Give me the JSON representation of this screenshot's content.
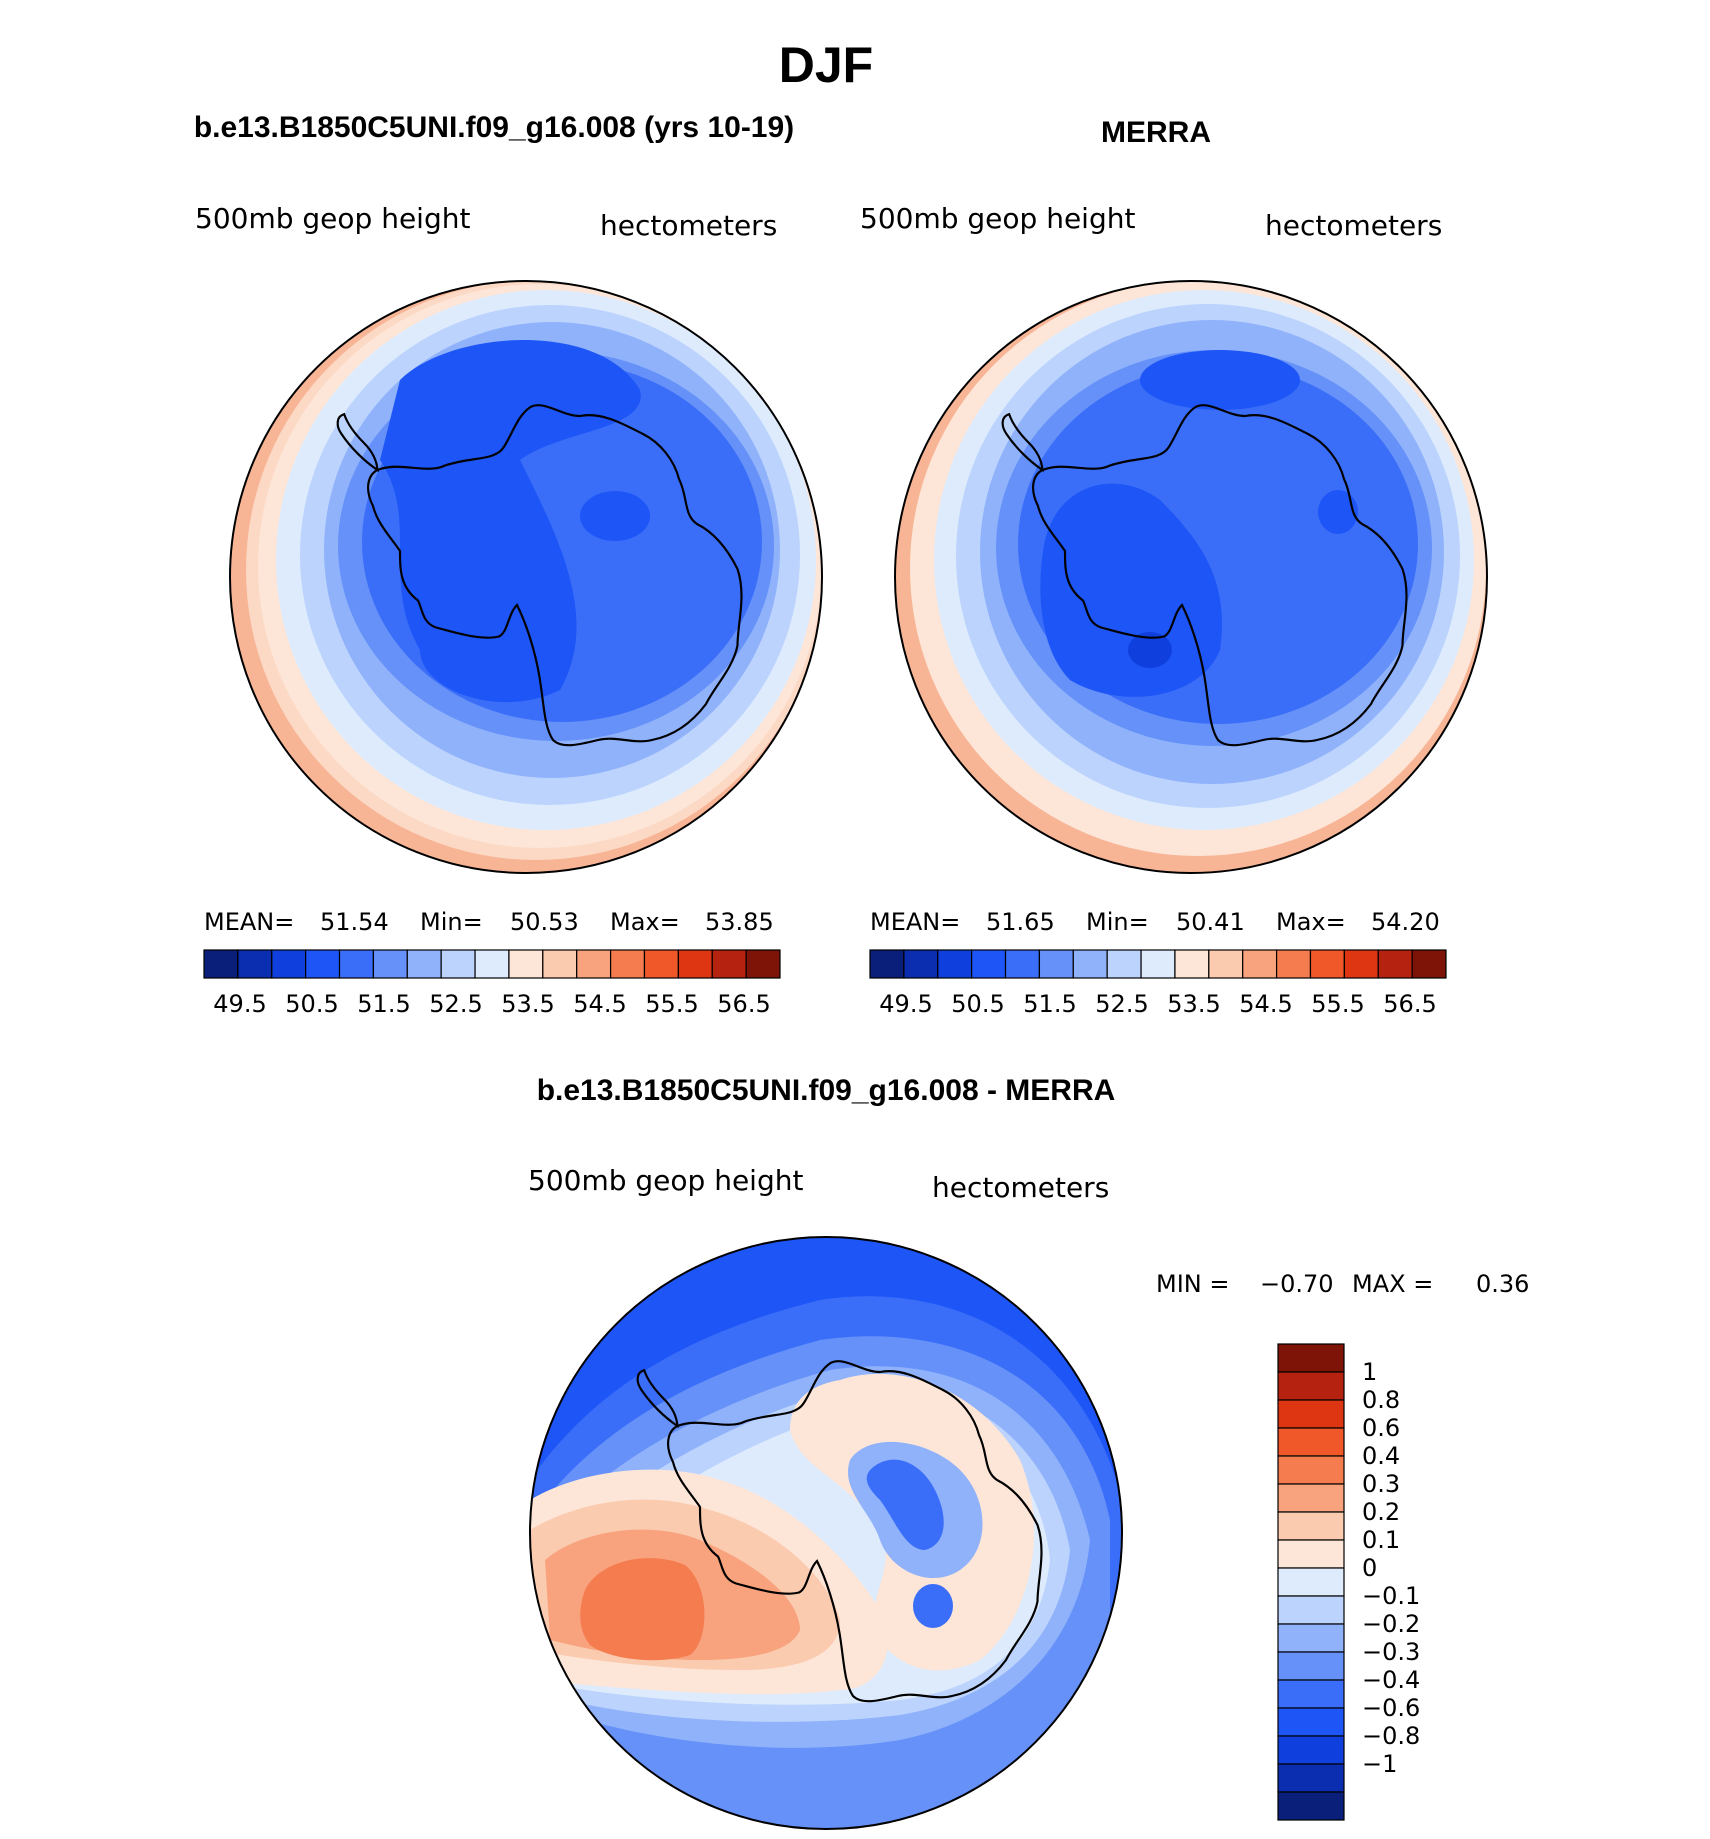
{
  "figure": {
    "title": "DJF"
  },
  "colors": {
    "abs": [
      "#0a1f7a",
      "#0b2db0",
      "#0f3fdc",
      "#1e55f6",
      "#3b6ef8",
      "#6591f9",
      "#8fb2fb",
      "#bcd3fd",
      "#ddebfc",
      "#fde6d8",
      "#fbcbb0",
      "#f8a37e",
      "#f47c4e",
      "#f0582a",
      "#de3612",
      "#b62210",
      "#7e1308"
    ],
    "diff": [
      "#0a1f7a",
      "#0b2db0",
      "#0f3fdc",
      "#1e55f6",
      "#3b6ef8",
      "#6591f9",
      "#8fb2fb",
      "#bcd3fd",
      "#ddebfc",
      "#fde6d8",
      "#fbcbb0",
      "#f8a37e",
      "#f47c4e",
      "#f0582a",
      "#de3612",
      "#b62210",
      "#7e1308"
    ],
    "coast": "#000000"
  },
  "panels": [
    {
      "heading": "b.e13.B1850C5UNI.f09_g16.008 (yrs 10-19)",
      "variable": "500mb geop height",
      "units": "hectometers",
      "stats": {
        "mean_label": "MEAN=",
        "mean": "51.54",
        "min_label": "Min=",
        "min": "50.53",
        "max_label": "Max=",
        "max": "53.85"
      },
      "colorbar_labels": [
        "49.5",
        "50.5",
        "51.5",
        "52.5",
        "53.5",
        "54.5",
        "55.5",
        "56.5"
      ]
    },
    {
      "heading": "MERRA",
      "variable": "500mb geop height",
      "units": "hectometers",
      "stats": {
        "mean_label": "MEAN=",
        "mean": "51.65",
        "min_label": "Min=",
        "min": "50.41",
        "max_label": "Max=",
        "max": "54.20"
      },
      "colorbar_labels": [
        "49.5",
        "50.5",
        "51.5",
        "52.5",
        "53.5",
        "54.5",
        "55.5",
        "56.5"
      ]
    }
  ],
  "diff_panel": {
    "heading": "b.e13.B1850C5UNI.f09_g16.008 - MERRA",
    "variable": "500mb geop height",
    "units": "hectometers",
    "stats": {
      "min_label": "MIN =",
      "min": "−0.70",
      "max_label": "MAX =",
      "max": "0.36"
    },
    "colorbar_labels": [
      "1",
      "0.8",
      "0.6",
      "0.4",
      "0.3",
      "0.2",
      "0.1",
      "0",
      "−0.1",
      "−0.2",
      "−0.3",
      "−0.4",
      "−0.6",
      "−0.8",
      "−1"
    ]
  }
}
